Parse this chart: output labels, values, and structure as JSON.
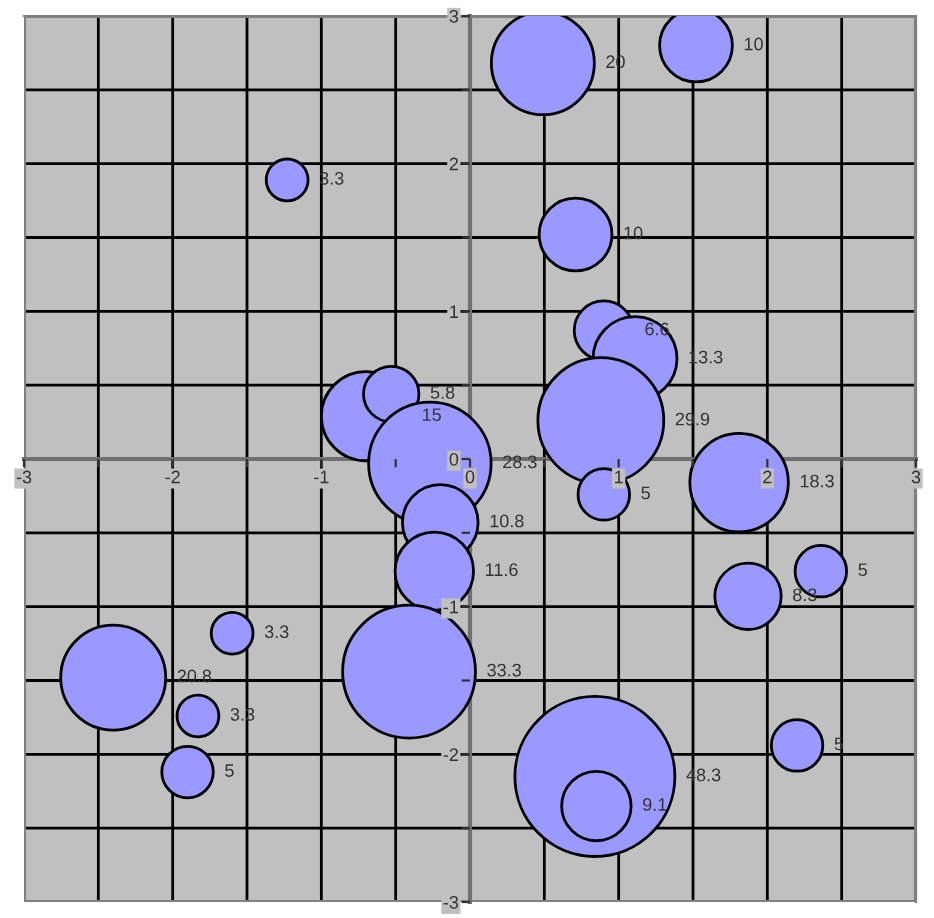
{
  "chart_data": {
    "type": "bubble",
    "x": [
      -1.23,
      0.49,
      1.52,
      0.71,
      0.9,
      1.11,
      0.88,
      -0.7,
      -0.53,
      -0.27,
      -0.2,
      -0.24,
      -0.41,
      0.9,
      1.81,
      1.87,
      2.36,
      2.2,
      0.84,
      0.85,
      -1.6,
      -2.4,
      -1.83,
      -1.9
    ],
    "series": [
      {
        "color": "#9999ff",
        "values": [
          1.89,
          2.68,
          2.8,
          1.52,
          0.87,
          0.68,
          0.26,
          0.29,
          0.44,
          -0.03,
          -0.43,
          -0.76,
          -1.44,
          -0.24,
          -0.16,
          -0.93,
          -0.76,
          -1.94,
          -2.15,
          -2.35,
          -1.18,
          -1.48,
          -1.74,
          -2.12
        ],
        "sizes": [
          3.3,
          20,
          10,
          10,
          6.6,
          13.3,
          29.9,
          15,
          5.8,
          28.3,
          10.8,
          11.6,
          33.3,
          5,
          18.3,
          8.3,
          5,
          5,
          48.3,
          9.1,
          3.3,
          20.8,
          3.3,
          5
        ],
        "value_labels": [
          "3.3",
          "20",
          "10",
          "10",
          "6.6",
          "13.3",
          "29.9",
          "15",
          "5.8",
          "28.3",
          "10.8",
          "11.6",
          "33.3",
          "5",
          "18.3",
          "8.3",
          "5",
          "5",
          "48.3",
          "9.1",
          "3.3",
          "20.8",
          "3.3",
          "5"
        ]
      }
    ],
    "xlim": [
      -3,
      3
    ],
    "ylim": [
      -3,
      3
    ],
    "xticks": [
      -3,
      {
        "value": -2.5,
        "label": null
      },
      -2,
      {
        "value": -1.5,
        "label": null
      },
      -1,
      {
        "value": -0.5,
        "label": null
      },
      0,
      {
        "value": 0.5,
        "label": null
      },
      1,
      {
        "value": 1.5,
        "label": null
      },
      2,
      {
        "value": 2.5,
        "label": null
      },
      3
    ],
    "yticks": [
      -3,
      {
        "value": -2.5,
        "label": null
      },
      -2,
      {
        "value": -1.5,
        "label": null
      },
      -1,
      {
        "value": -0.5,
        "label": null
      },
      0,
      {
        "value": 0.5,
        "label": null
      },
      1,
      {
        "value": 1.5,
        "label": null
      },
      2,
      {
        "value": 2.5,
        "label": null
      },
      3
    ],
    "grid": true,
    "legend": false
  }
}
